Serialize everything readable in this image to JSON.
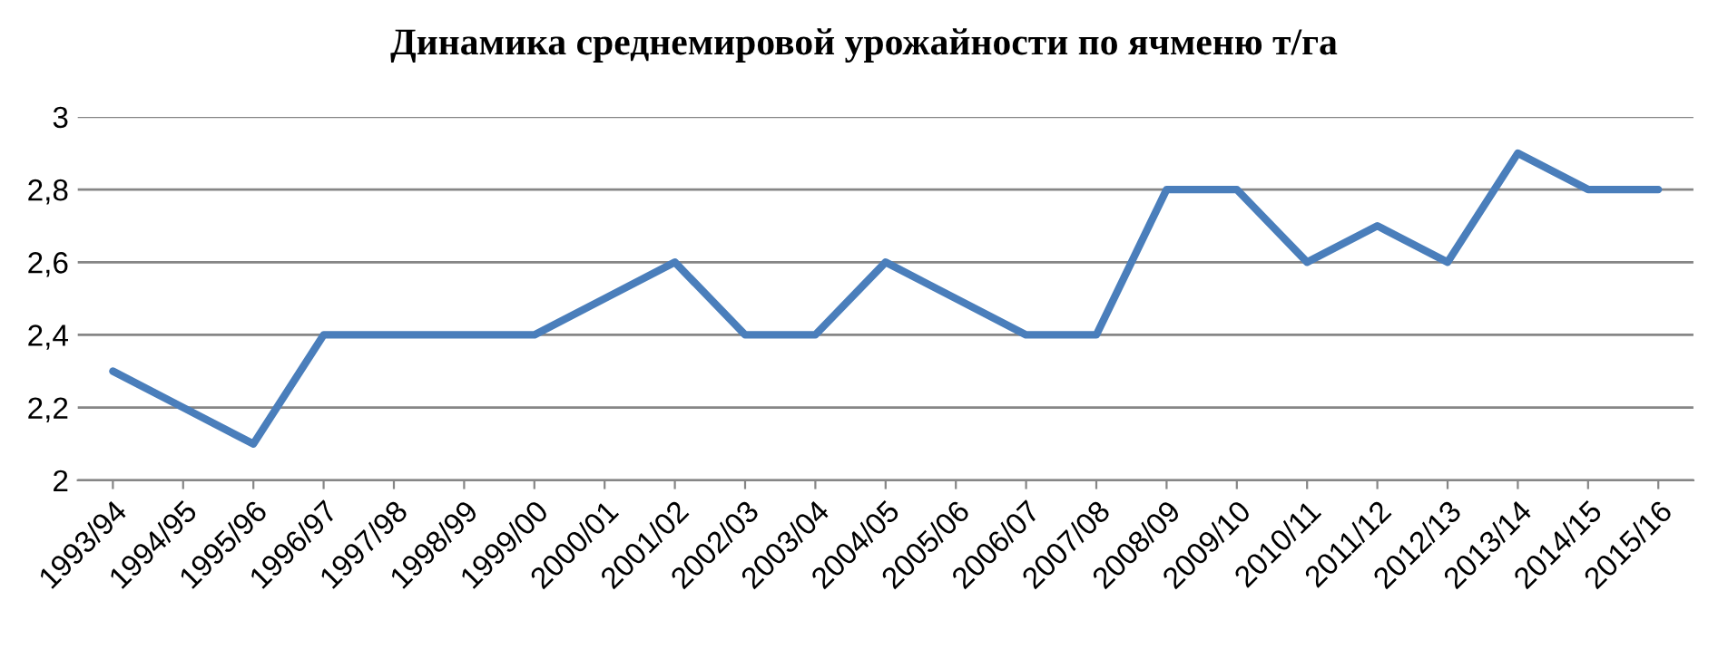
{
  "chart_data": {
    "type": "line",
    "title": "Динамика среднемировой урожайности по ячменю т/га",
    "categories": [
      "1993/94",
      "1994/95",
      "1995/96",
      "1996/97",
      "1997/98",
      "1998/99",
      "1999/00",
      "2000/01",
      "2001/02",
      "2002/03",
      "2003/04",
      "2004/05",
      "2005/06",
      "2006/07",
      "2007/08",
      "2008/09",
      "2009/10",
      "2010/11",
      "2011/12",
      "2012/13",
      "2013/14",
      "2014/15",
      "2015/16"
    ],
    "series": [
      {
        "color": "#4a7ebb",
        "values": [
          2.3,
          2.2,
          2.1,
          2.4,
          2.4,
          2.4,
          2.4,
          2.5,
          2.6,
          2.4,
          2.4,
          2.6,
          2.5,
          2.4,
          2.4,
          2.8,
          2.8,
          2.6,
          2.7,
          2.6,
          2.9,
          2.8,
          2.8
        ]
      }
    ],
    "ylim": [
      2,
      3
    ],
    "yticks": [
      2,
      {
        "value": 2.2,
        "label": "2,2"
      },
      {
        "value": 2.4,
        "label": "2,4"
      },
      {
        "value": 2.6,
        "label": "2,6"
      },
      {
        "value": 2.8,
        "label": "2,8"
      },
      3
    ],
    "grid": "y",
    "legend": false,
    "marker": "none",
    "line_style": "solid"
  }
}
